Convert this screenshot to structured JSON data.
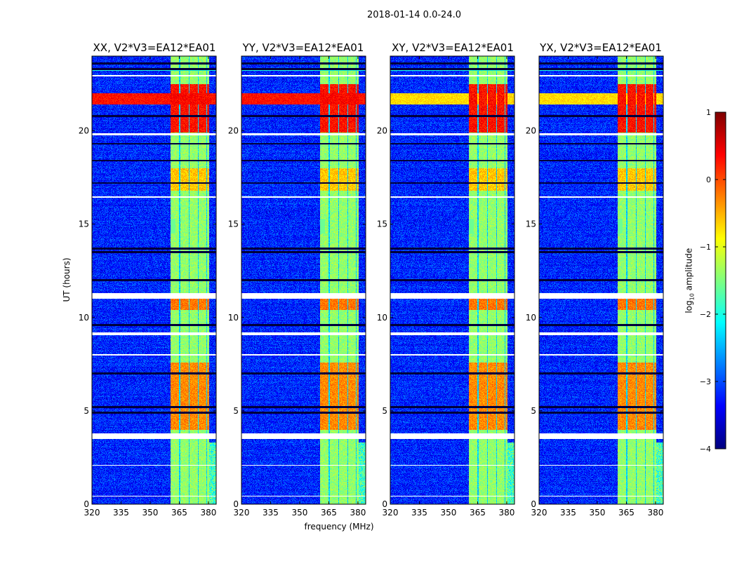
{
  "suptitle": "2018-01-14 0.0-24.0",
  "chart_data": {
    "type": "heatmap",
    "title": "2018-01-14 0.0-24.0",
    "xlabel": "frequency (MHz)",
    "ylabel": "UT (hours)",
    "xlim": [
      320,
      384
    ],
    "ylim": [
      0,
      24
    ],
    "xticks": [
      320,
      335,
      350,
      365,
      380
    ],
    "yticks": [
      0,
      5,
      10,
      15,
      20
    ],
    "panels": [
      {
        "title": "XX, V2*V3=EA12*EA01",
        "rfi_strength": 0.3
      },
      {
        "title": "YY, V2*V3=EA12*EA01",
        "rfi_strength": 0.3
      },
      {
        "title": "XY, V2*V3=EA12*EA01",
        "rfi_strength": -0.7
      },
      {
        "title": "YX, V2*V3=EA12*EA01",
        "rfi_strength": -0.7
      }
    ],
    "value_scale": "log10 amplitude",
    "colormap": "jet",
    "background_level": -3.2,
    "signal_band_mhz": [
      360.5,
      380.5
    ],
    "signal_band_level": -1.4,
    "channel_gaps_mhz": [
      [
        365.0,
        365.6
      ],
      [
        369.8,
        370.4
      ],
      [
        374.6,
        375.1
      ],
      [
        378.9,
        379.4
      ]
    ],
    "bright_epochs_hours": [
      {
        "range": [
          4.0,
          7.6
        ],
        "level": -0.3
      },
      {
        "range": [
          10.4,
          11.0
        ],
        "level": -0.2
      },
      {
        "range": [
          16.8,
          18.0
        ],
        "level": -0.6
      },
      {
        "range": [
          19.9,
          22.5
        ],
        "level": 0.3
      }
    ],
    "broadband_rfi_hours": [
      21.4,
      22.0
    ],
    "flagged_hours": [
      [
        3.5,
        3.8
      ],
      [
        7.95,
        8.05
      ],
      [
        9.05,
        9.2
      ],
      [
        11.0,
        11.3
      ],
      [
        19.75,
        19.85
      ],
      [
        16.4,
        16.5
      ],
      [
        22.9,
        23.0
      ],
      [
        0.4,
        0.45
      ],
      [
        2.05,
        2.1
      ]
    ],
    "dark_rows_hours": [
      4.9,
      5.2,
      7.0,
      9.6,
      12.0,
      13.5,
      13.7,
      17.2,
      18.4,
      19.3,
      20.8,
      23.3,
      23.6
    ],
    "colorbar": {
      "label": "log10 amplitude",
      "label_base": "log",
      "label_sub": "10",
      "label_rest": " amplitude",
      "ticks": [
        1,
        0,
        -1,
        -2,
        -3,
        -4
      ],
      "tick_labels": [
        "1",
        "0",
        "−1",
        "−2",
        "−3",
        "−4"
      ],
      "range": [
        -4,
        1
      ]
    }
  }
}
